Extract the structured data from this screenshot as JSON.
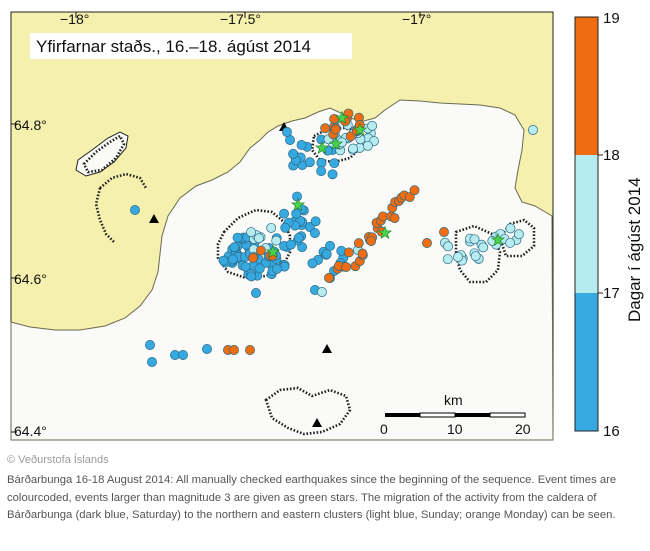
{
  "map": {
    "title": "Yfirfarnar staðs., 16.–18. ágúst 2014",
    "lon_ticks": [
      "−18°",
      "−17.5°",
      "−17°"
    ],
    "lat_ticks": [
      "64.8°",
      "64.6°",
      "64.4°"
    ],
    "scalebar": {
      "unit": "km",
      "labels": [
        "0",
        "10",
        "20"
      ]
    },
    "colors": {
      "land": "#f5f0ad",
      "glacier": "#fafaf8",
      "day16": "#36a9e1",
      "day17": "#b6ecef",
      "day18": "#ef6c11",
      "star": "#49d34c"
    }
  },
  "colorbar": {
    "title": "Dagar í ágúst 2014",
    "labels": [
      "19",
      "18",
      "17",
      "16"
    ]
  },
  "footer": {
    "copyright": "© Veðurstofa Íslands",
    "caption": "Bárðarbunga 16-18 August 2014: All manually checked earthquakes since the beginning of the sequence. Event times are colourcoded, events larger than magnitude 3 are given as green stars. The migration of the activity from the caldera of Bárðarbunga (dark blue, Saturday) to the northern and eastern clusters (light blue, Sunday; orange Monday) can be seen."
  }
}
